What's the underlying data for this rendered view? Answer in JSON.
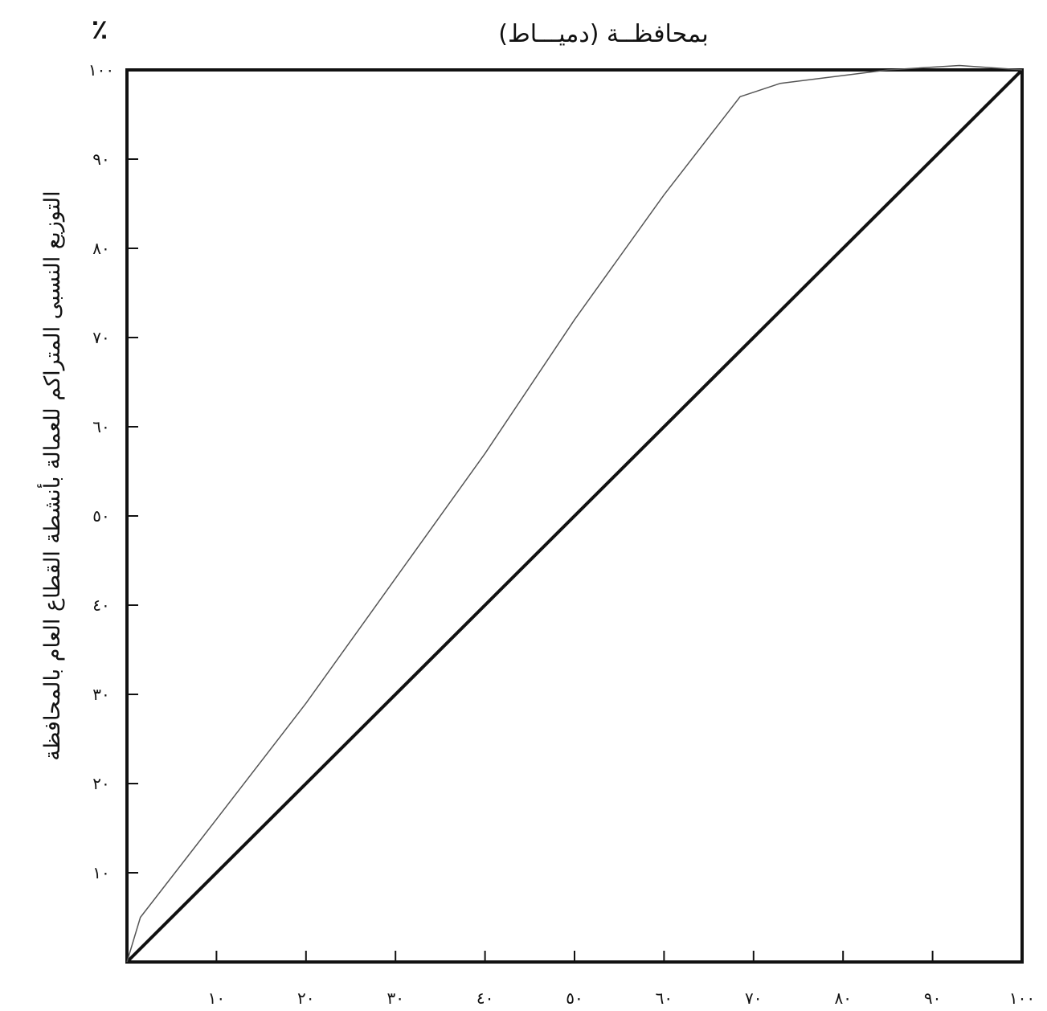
{
  "chart_data": {
    "type": "line",
    "title": "بمحافظــة (دميـــاط)",
    "xlabel": "",
    "ylabel": "التوزيع النسبى المتراكم للعمالة بأنشطة القطاع العام بالمحافظة",
    "y_unit": "٪",
    "xlim": [
      0,
      100
    ],
    "ylim": [
      0,
      100
    ],
    "x_ticks": [
      {
        "value": 10,
        "label": "١٠"
      },
      {
        "value": 20,
        "label": "٢٠"
      },
      {
        "value": 30,
        "label": "٣٠"
      },
      {
        "value": 40,
        "label": "٤٠"
      },
      {
        "value": 50,
        "label": "٥٠"
      },
      {
        "value": 60,
        "label": "٦٠"
      },
      {
        "value": 70,
        "label": "٧٠"
      },
      {
        "value": 80,
        "label": "٨٠"
      },
      {
        "value": 90,
        "label": "٩٠"
      },
      {
        "value": 100,
        "label": "١٠٠"
      }
    ],
    "y_ticks": [
      {
        "value": 10,
        "label": "١٠"
      },
      {
        "value": 20,
        "label": "٢٠"
      },
      {
        "value": 30,
        "label": "٣٠"
      },
      {
        "value": 40,
        "label": "٤٠"
      },
      {
        "value": 50,
        "label": "٥٠"
      },
      {
        "value": 60,
        "label": "٦٠"
      },
      {
        "value": 70,
        "label": "٧٠"
      },
      {
        "value": 80,
        "label": "٨٠"
      },
      {
        "value": 90,
        "label": "٩٠"
      },
      {
        "value": 100,
        "label": "١٠٠"
      }
    ],
    "grid": false,
    "series": [
      {
        "color": "#111111",
        "x": [
          0,
          100
        ],
        "y": [
          0,
          100
        ]
      },
      {
        "color": "#555555",
        "x": [
          0,
          1.5,
          10,
          20,
          30,
          40,
          50,
          60,
          68.5,
          70,
          73,
          85,
          93,
          100
        ],
        "y": [
          0,
          5,
          16,
          29,
          43,
          57,
          72,
          86,
          97,
          97.5,
          98.5,
          100,
          100.5,
          100
        ]
      }
    ]
  }
}
